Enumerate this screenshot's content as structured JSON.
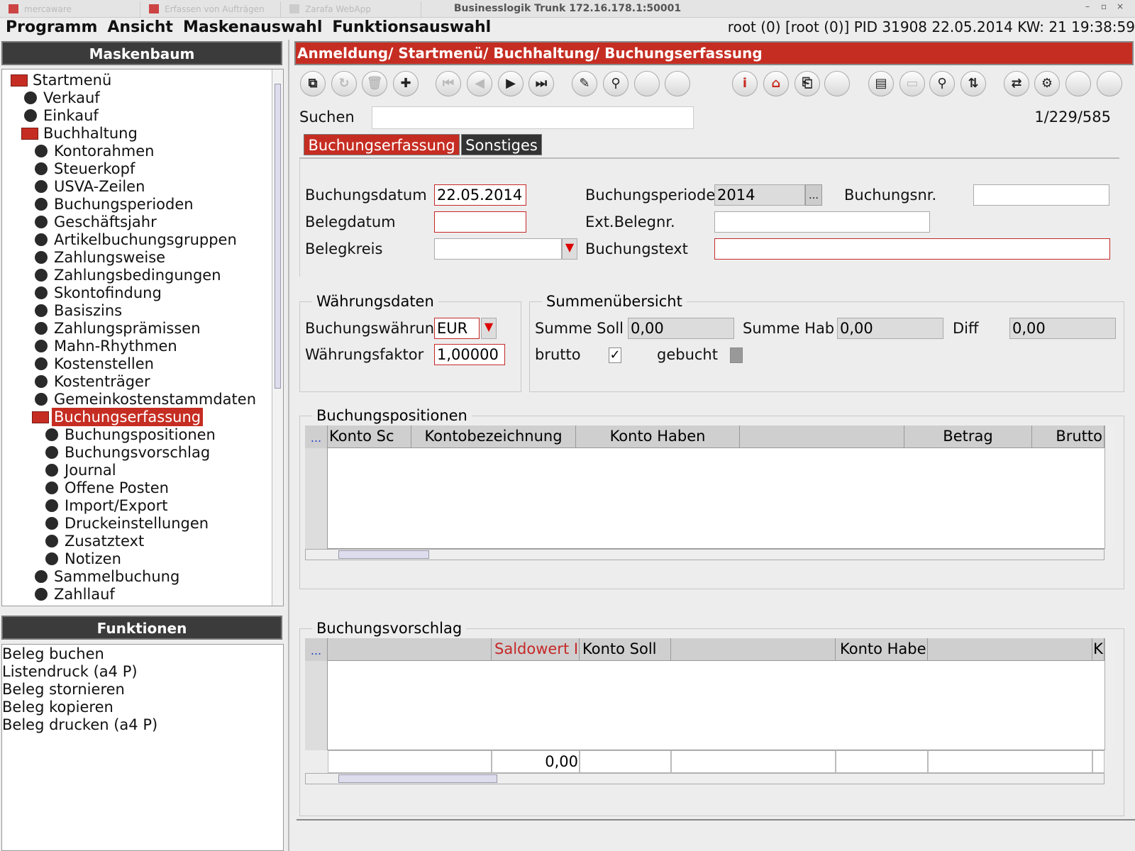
{
  "window": {
    "title": "Businesslogik Trunk 172.16.178.1:50001",
    "tabs": [
      "mercaware",
      "Erfassen von Aufträgen",
      "Zarafa WebApp"
    ]
  },
  "menu": [
    "Programm",
    "Ansicht",
    "Maskenauswahl",
    "Funktionsauswahl"
  ],
  "status": "root (0) [root (0)] PID 31908 22.05.2014 KW: 21 19:38:59",
  "tree": {
    "title": "Maskenbaum",
    "items": [
      {
        "label": "Startmenü",
        "children": [
          {
            "label": "Verkauf"
          },
          {
            "label": "Einkauf"
          },
          {
            "label": "Buchhaltung",
            "children": [
              {
                "label": "Kontorahmen"
              },
              {
                "label": "Steuerkopf"
              },
              {
                "label": "USVA-Zeilen"
              },
              {
                "label": "Buchungsperioden"
              },
              {
                "label": "Geschäftsjahr"
              },
              {
                "label": "Artikelbuchungsgruppen"
              },
              {
                "label": "Zahlungsweise"
              },
              {
                "label": "Zahlungsbedingungen"
              },
              {
                "label": "Skontofindung"
              },
              {
                "label": "Basiszins"
              },
              {
                "label": "Zahlungsprämissen"
              },
              {
                "label": "Mahn-Rhythmen"
              },
              {
                "label": "Kostenstellen"
              },
              {
                "label": "Kostenträger"
              },
              {
                "label": "Gemeinkostenstammdaten"
              },
              {
                "label": "Buchungserfassung",
                "selected": true,
                "children": [
                  {
                    "label": "Buchungspositionen"
                  },
                  {
                    "label": "Buchungsvorschlag"
                  },
                  {
                    "label": "Journal"
                  },
                  {
                    "label": "Offene Posten"
                  },
                  {
                    "label": "Import/Export"
                  },
                  {
                    "label": "Druckeinstellungen"
                  },
                  {
                    "label": "Zusatztext"
                  },
                  {
                    "label": "Notizen"
                  }
                ]
              },
              {
                "label": "Sammelbuchung"
              },
              {
                "label": "Zahllauf"
              }
            ]
          }
        ]
      }
    ]
  },
  "functions": {
    "title": "Funktionen",
    "items": [
      "Beleg buchen",
      "Listendruck (a4 P)",
      "Beleg stornieren",
      "Beleg kopieren",
      "Beleg drucken (a4 P)"
    ]
  },
  "breadcrumb": "Anmeldung/ Startmenü/ Buchhaltung/ Buchungserfassung",
  "search": {
    "label": "Suchen",
    "record": "1/229/585"
  },
  "tabs": [
    "Buchungserfassung",
    "Sonstiges"
  ],
  "form": {
    "buchungsdatum": {
      "label": "Buchungsdatum",
      "value": "22.05.2014"
    },
    "belegdatum": {
      "label": "Belegdatum"
    },
    "belegkreis": {
      "label": "Belegkreis"
    },
    "buchungsperiode": {
      "label": "Buchungsperiode",
      "value": "2014"
    },
    "ext_belegnr": {
      "label": "Ext.Belegnr."
    },
    "buchungstext": {
      "label": "Buchungstext"
    },
    "buchungsnr": {
      "label": "Buchungsnr."
    }
  },
  "currency": {
    "title": "Währungsdaten",
    "waehrung": {
      "label": "Buchungswährun",
      "value": "EUR"
    },
    "faktor": {
      "label": "Währungsfaktor",
      "value": "1,00000"
    }
  },
  "summary": {
    "title": "Summenübersicht",
    "soll": {
      "label": "Summe Soll",
      "value": "0,00"
    },
    "haben": {
      "label": "Summe Hab",
      "value": "0,00"
    },
    "diff": {
      "label": "Diff",
      "value": "0,00"
    },
    "brutto": {
      "label": "brutto",
      "checked": true
    },
    "gebucht": {
      "label": "gebucht",
      "checked": false
    }
  },
  "positions": {
    "title": "Buchungspositionen",
    "more_button": "...",
    "columns": [
      "Konto Sc",
      "Kontobezeichnung",
      "Konto Haben",
      "Betrag",
      "Brutto"
    ]
  },
  "proposal": {
    "title": "Buchungsvorschlag",
    "more_button": "...",
    "columns": [
      "Saldowert I",
      "Konto Soll",
      "Konto Habe",
      "K"
    ],
    "total": "0,00"
  }
}
